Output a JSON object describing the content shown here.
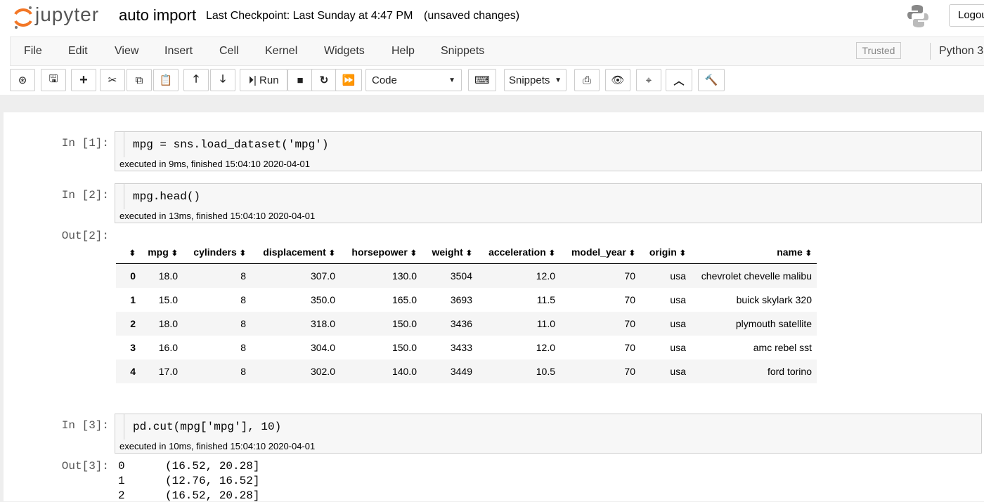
{
  "header": {
    "logo": "jupyter",
    "notebook_name": "auto import",
    "checkpoint": "Last Checkpoint: Last Sunday at 4:47 PM",
    "status": "(unsaved changes)",
    "logout": "Logout"
  },
  "menu": {
    "items": [
      "File",
      "Edit",
      "View",
      "Insert",
      "Cell",
      "Kernel",
      "Widgets",
      "Help",
      "Snippets"
    ],
    "trusted": "Trusted",
    "kernel": "Python 3"
  },
  "toolbar": {
    "run": "Run",
    "cell_type": "Code",
    "snippets": "Snippets"
  },
  "cells": [
    {
      "prompt": "In [1]:",
      "source": "mpg = sns.load_dataset('mpg')",
      "exec_info": "executed in 9ms, finished 15:04:10 2020-04-01"
    },
    {
      "prompt": "In [2]:",
      "source": "mpg.head()",
      "exec_info": "executed in 13ms, finished 15:04:10 2020-04-01"
    },
    {
      "prompt": "In [3]:",
      "source": "pd.cut(mpg['mpg'], 10)",
      "exec_info": "executed in 10ms, finished 15:04:10 2020-04-01"
    }
  ],
  "output_table": {
    "prompt": "Out[2]:",
    "columns": [
      "mpg",
      "cylinders",
      "displacement",
      "horsepower",
      "weight",
      "acceleration",
      "model_year",
      "origin",
      "name"
    ],
    "rows": [
      [
        "0",
        "18.0",
        "8",
        "307.0",
        "130.0",
        "3504",
        "12.0",
        "70",
        "usa",
        "chevrolet chevelle malibu"
      ],
      [
        "1",
        "15.0",
        "8",
        "350.0",
        "165.0",
        "3693",
        "11.5",
        "70",
        "usa",
        "buick skylark 320"
      ],
      [
        "2",
        "18.0",
        "8",
        "318.0",
        "150.0",
        "3436",
        "11.0",
        "70",
        "usa",
        "plymouth satellite"
      ],
      [
        "3",
        "16.0",
        "8",
        "304.0",
        "150.0",
        "3433",
        "12.0",
        "70",
        "usa",
        "amc rebel sst"
      ],
      [
        "4",
        "17.0",
        "8",
        "302.0",
        "140.0",
        "3449",
        "10.5",
        "70",
        "usa",
        "ford torino"
      ]
    ]
  },
  "output_text": {
    "prompt": "Out[3]:",
    "lines": [
      [
        "0",
        "(16.52, 20.28]"
      ],
      [
        "1",
        "(12.76, 16.52]"
      ],
      [
        "2",
        "(16.52, 20.28]"
      ]
    ]
  }
}
